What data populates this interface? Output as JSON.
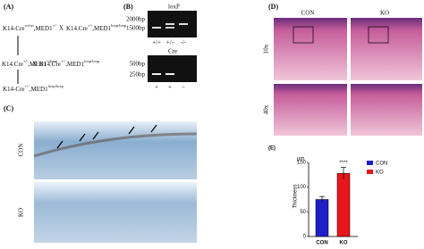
{
  "panel_a": {
    "label": "(A)",
    "cross_1": {
      "left": [
        "K14-Cre",
        "wt/wt",
        ",MED1",
        "+/-"
      ],
      "sign": "X",
      "right": [
        "K14.Cre",
        "+/-",
        ",MED1",
        "loxp/loxp"
      ]
    },
    "cross_2": {
      "left": [
        "K14.Cre",
        "+/-",
        ",MED1",
        "+/loxp"
      ],
      "sign": "X",
      "right": [
        "K14.Cre",
        "+/-",
        ",MED1",
        "loxp/loxp"
      ]
    },
    "result": [
      "K14-Cre",
      "+/-",
      ",MED1",
      "loxp/loxp"
    ]
  },
  "panel_b": {
    "label": "(B)",
    "gel_1": {
      "title": "loxP",
      "markers": [
        "2000bp",
        "1500bp"
      ],
      "lanes": [
        "+/+",
        "+/-",
        "-/-"
      ]
    },
    "gel_2": {
      "title": "Cre",
      "markers": [
        "500bp",
        "250bp"
      ],
      "lanes": [
        "+",
        "+",
        "−"
      ]
    }
  },
  "panel_c": {
    "label": "(C)",
    "rows": [
      "CON",
      "KO"
    ]
  },
  "panel_d": {
    "label": "(D)",
    "columns": [
      "CON",
      "KO"
    ],
    "rows": [
      "10x",
      "40x"
    ]
  },
  "chart_data": {
    "type": "bar",
    "label": "(E)",
    "ylabel": "Thickness",
    "yunit": "μm",
    "categories": [
      "CON",
      "KO"
    ],
    "values": [
      75,
      128
    ],
    "errors": [
      6,
      12
    ],
    "colors": [
      "#1f1fc8",
      "#e8161b"
    ],
    "annotation": "****",
    "ylim": [
      0,
      150
    ],
    "yticks": [
      0,
      50,
      100,
      150
    ],
    "legend": "top-right"
  }
}
